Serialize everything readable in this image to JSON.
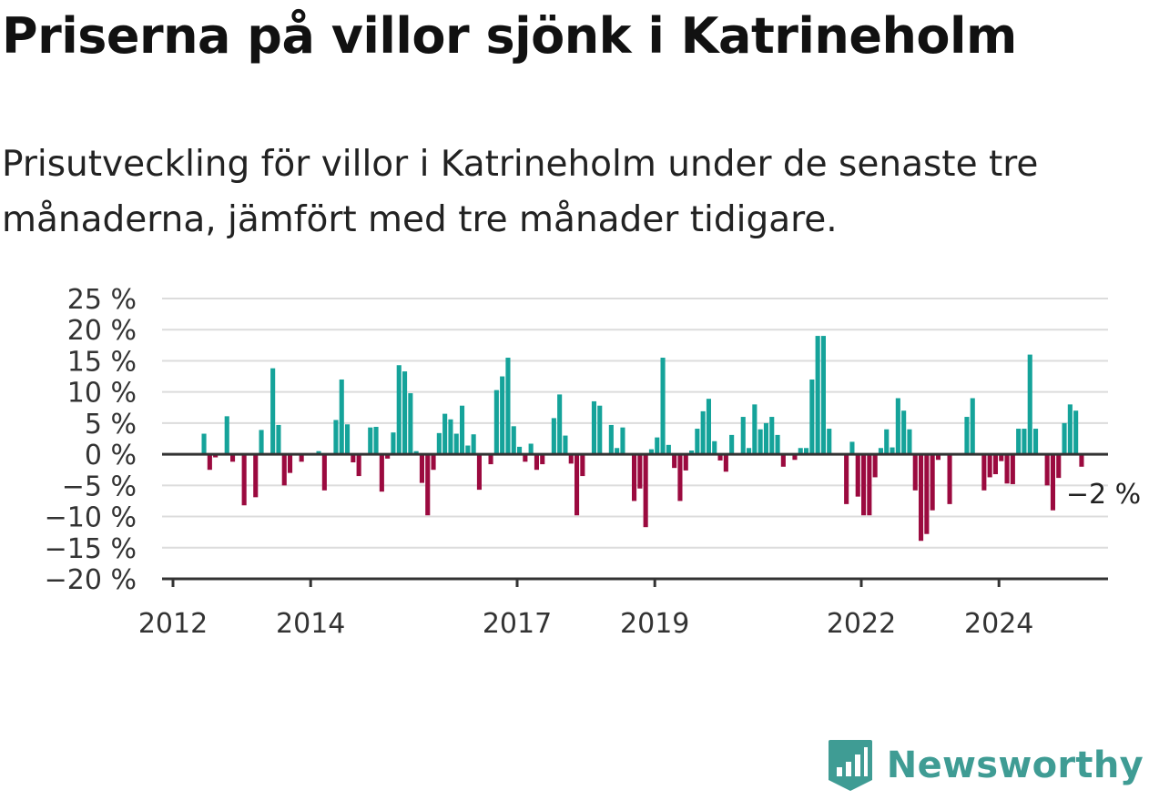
{
  "header": {
    "title": "Priserna på villor sjönk i Katrineholm",
    "subtitle": "Prisutveckling för villor i Katrineholm under de senaste tre månaderna, jämfört med tre månader tidigare."
  },
  "brand": {
    "name": "Newsworthy",
    "color": "#3f9c94",
    "icon": "newsworthy-logo-icon"
  },
  "colors": {
    "positive": "#15a39a",
    "negative": "#9b0a3f",
    "grid": "#dcdcdc",
    "axis": "#333333"
  },
  "chart_data": {
    "type": "bar",
    "title": "Priserna på villor sjönk i Katrineholm",
    "subtitle": "Prisutveckling för villor i Katrineholm under de senaste tre månaderna, jämfört med tre månader tidigare.",
    "xlabel": "",
    "ylabel": "",
    "x_start": "2012-01",
    "x_step": "month",
    "ylim": [
      -20,
      25
    ],
    "y_ticks": [
      25,
      20,
      15,
      10,
      5,
      0,
      -5,
      -10,
      -15,
      -20
    ],
    "y_tick_labels": [
      "25 %",
      "20 %",
      "15 %",
      "10 %",
      "5 %",
      "0 %",
      "−5 %",
      "−10 %",
      "−15 %",
      "−20 %"
    ],
    "x_ticks": [
      "2012",
      "2014",
      "2017",
      "2019",
      "2022",
      "2024"
    ],
    "grid": true,
    "legend": "none",
    "values": [
      null,
      null,
      null,
      null,
      null,
      3.3,
      -2.5,
      -0.5,
      0,
      6.1,
      -1.2,
      0,
      -8.2,
      0,
      -6.9,
      3.9,
      0,
      13.8,
      4.7,
      -5.0,
      -3.0,
      0,
      -1.2,
      0,
      0,
      0.5,
      -5.8,
      0,
      5.5,
      12.0,
      4.8,
      -1.3,
      -3.5,
      0,
      4.3,
      4.4,
      -6.0,
      -0.7,
      3.5,
      14.3,
      13.3,
      9.8,
      0.5,
      -4.6,
      -9.8,
      -2.5,
      3.4,
      6.5,
      5.6,
      3.3,
      7.8,
      1.4,
      3.2,
      -5.7,
      0,
      -1.6,
      10.3,
      12.5,
      15.5,
      4.5,
      1.2,
      -1.2,
      1.7,
      -2.5,
      -1.6,
      0,
      5.8,
      9.6,
      3.0,
      -1.5,
      -9.8,
      -3.5,
      0,
      8.5,
      7.8,
      0,
      4.7,
      1.0,
      4.3,
      0,
      -7.5,
      -5.5,
      -11.7,
      0.8,
      2.7,
      15.5,
      1.5,
      -2.2,
      -7.5,
      -2.6,
      0.6,
      4.1,
      6.9,
      8.9,
      2.1,
      -1.0,
      -2.8,
      3.1,
      0,
      6.0,
      1.0,
      8.0,
      4.0,
      5.0,
      6.0,
      3.1,
      -2.0,
      0,
      -0.9,
      1.0,
      1.0,
      12.0,
      19.0,
      19.0,
      4.1,
      0,
      0,
      -8.0,
      2.0,
      -6.8,
      -9.8,
      -9.8,
      -3.7,
      1.0,
      4.0,
      1.1,
      9.0,
      7.0,
      4.0,
      -5.8,
      -13.9,
      -12.8,
      -9.0,
      -0.9,
      0,
      -8.0,
      0,
      0,
      6.0,
      9.0,
      0,
      -5.8,
      -3.7,
      -3.2,
      -1.1,
      -4.7,
      -4.8,
      4.1,
      4.1,
      16.0,
      4.1,
      0,
      -5.0,
      -9.0,
      -3.8,
      5.0,
      8.0,
      7.0,
      -2.0
    ],
    "annotation": {
      "text": "−2 %",
      "value": -2,
      "x": "2024-12"
    }
  }
}
